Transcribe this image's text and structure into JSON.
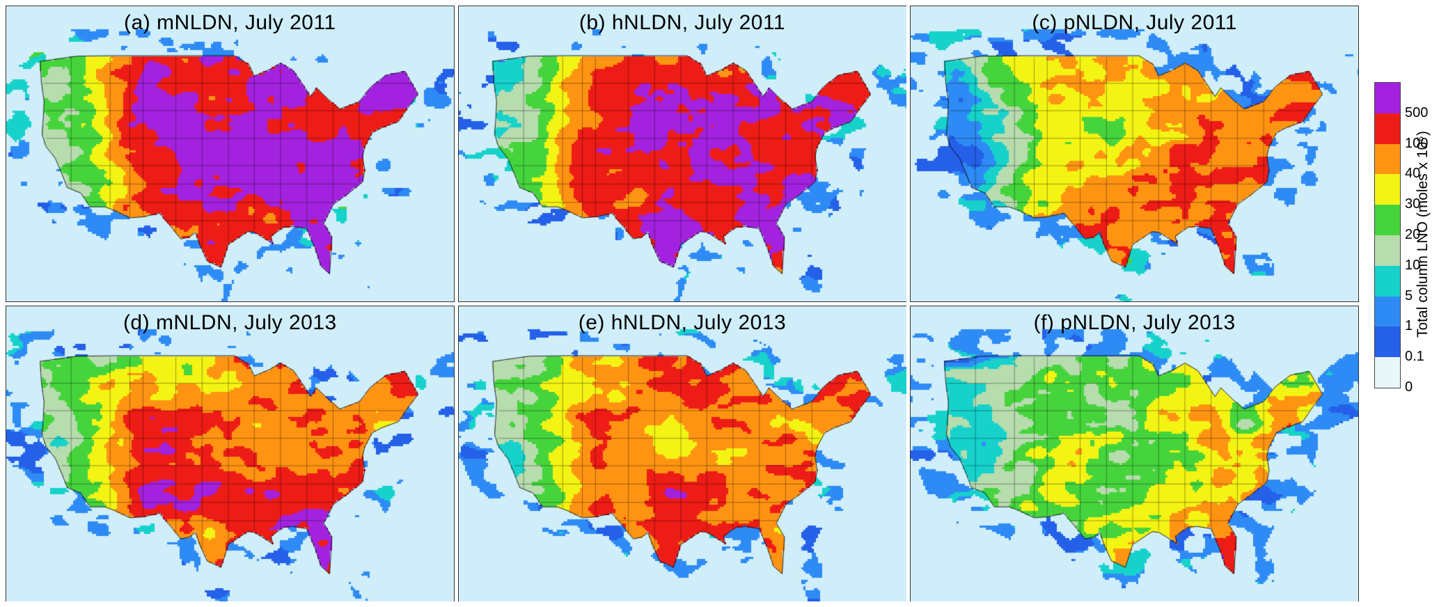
{
  "figure": {
    "panels": [
      {
        "id": "a",
        "label": "(a) mNLDN, July 2011"
      },
      {
        "id": "b",
        "label": "(b) hNLDN, July 2011"
      },
      {
        "id": "c",
        "label": "(c) pNLDN, July 2011"
      },
      {
        "id": "d",
        "label": "(d) mNLDN, July 2013"
      },
      {
        "id": "e",
        "label": "(e) hNLDN, July 2013"
      },
      {
        "id": "f",
        "label": "(f) pNLDN, July 2013"
      }
    ],
    "colorbar": {
      "label": "Total column LNO (moles x 10⁵)",
      "tick_labels": [
        "500",
        "100",
        "40",
        "30",
        "20",
        "10",
        "5",
        "1",
        "0.1",
        "0"
      ],
      "segment_colors_top_to_bottom": [
        "#a322df",
        "#ee1c16",
        "#ff9412",
        "#f4f414",
        "#46d43c",
        "#b7dcae",
        "#16d2cb",
        "#2e8bf5",
        "#2460e8",
        "#e9f7fb"
      ],
      "background_color": "#cfeef9"
    }
  },
  "chart_data": {
    "type": "heatmap",
    "title": "Total column LNO (moles x 10⁵)",
    "region": "Contiguous United States",
    "panels": [
      {
        "id": "a",
        "scheme": "mNLDN",
        "period": "July 2011",
        "label": "(a) mNLDN, July 2011"
      },
      {
        "id": "b",
        "scheme": "hNLDN",
        "period": "July 2011",
        "label": "(b) hNLDN, July 2011"
      },
      {
        "id": "c",
        "scheme": "pNLDN",
        "period": "July 2011",
        "label": "(c) pNLDN, July 2011"
      },
      {
        "id": "d",
        "scheme": "mNLDN",
        "period": "July 2013",
        "label": "(d) mNLDN, July 2013"
      },
      {
        "id": "e",
        "scheme": "hNLDN",
        "period": "July 2013",
        "label": "(e) hNLDN, July 2013"
      },
      {
        "id": "f",
        "scheme": "pNLDN",
        "period": "July 2013",
        "label": "(f) pNLDN, July 2013"
      }
    ],
    "color_scale": {
      "units": "moles x 10⁵",
      "levels_low_to_high": [
        0,
        0.1,
        1,
        5,
        10,
        20,
        30,
        40,
        100,
        500
      ],
      "colors_low_to_high": [
        "#e9f7fb",
        "#2460e8",
        "#2e8bf5",
        "#16d2cb",
        "#b7dcae",
        "#46d43c",
        "#f4f414",
        "#ff9412",
        "#ee1c16",
        "#a322df"
      ]
    },
    "legend_position": "right"
  }
}
